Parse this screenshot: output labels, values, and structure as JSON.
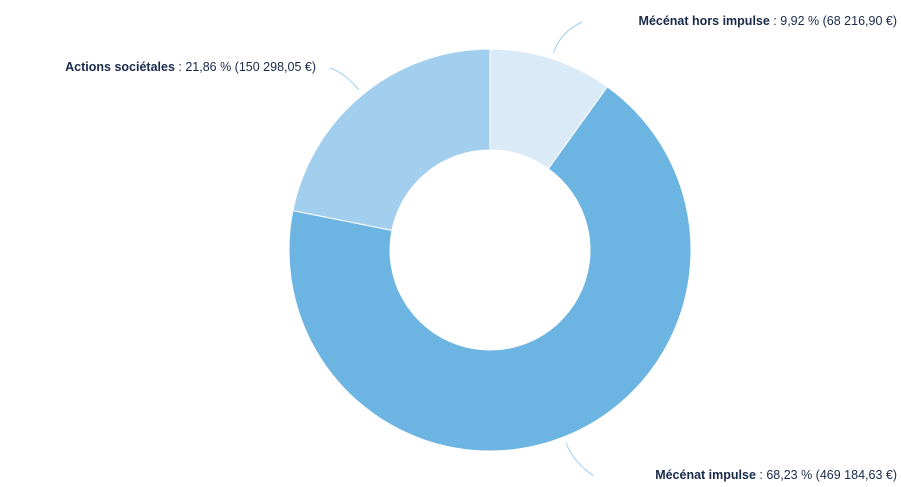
{
  "chart_data": {
    "type": "donut",
    "categories": [
      "Mécénat hors impulse",
      "Mécénat impulse",
      "Actions sociétales"
    ],
    "values": [
      9.92,
      68.23,
      21.86
    ],
    "value_labels": [
      " : 9,92 % (68 216,90 €)",
      " : 68,23 % (469 184,63 €)",
      " : 21,86 % (150 298,05 €)"
    ],
    "colors": [
      "#daeaf6",
      "#6cb4e2",
      "#a3cfee"
    ]
  }
}
